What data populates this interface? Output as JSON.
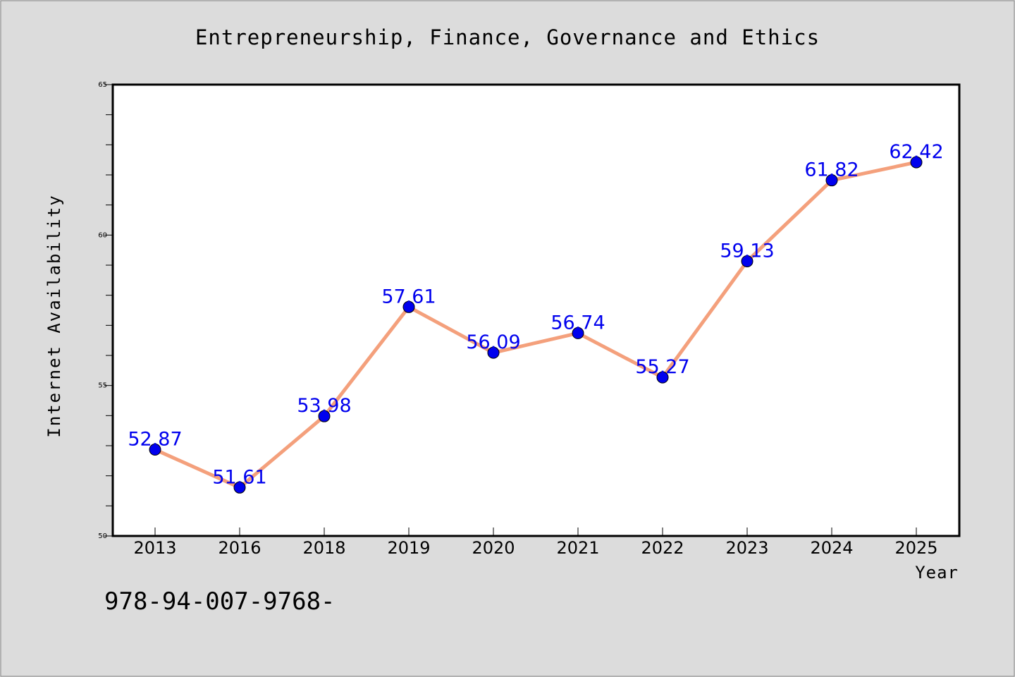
{
  "chart_data": {
    "type": "line",
    "title": "Entrepreneurship, Finance, Governance and Ethics",
    "xlabel": "Year",
    "ylabel": "Internet Availability",
    "categories": [
      "2013",
      "2016",
      "2018",
      "2019",
      "2020",
      "2021",
      "2022",
      "2023",
      "2024",
      "2025"
    ],
    "series": [
      {
        "values": [
          52.87,
          51.61,
          53.98,
          57.61,
          56.09,
          56.74,
          55.27,
          59.13,
          61.82,
          62.42
        ],
        "labels": [
          "52.87",
          "51.61",
          "53.98",
          "57.61",
          "56.09",
          "56.74",
          "55.27",
          "59.13",
          "61.82",
          "62.42"
        ],
        "line_color": "#f4a07c",
        "marker_color": "#0000ee",
        "label_color": "#0000ee"
      }
    ],
    "ylim": [
      50,
      65
    ],
    "yticks_major": [
      50,
      55,
      60,
      65
    ],
    "ytick_labels": [
      "50",
      "55",
      "60",
      "65"
    ],
    "yticks_minor_step": 1,
    "grid": false,
    "footnote": "978-94-007-9768-"
  }
}
